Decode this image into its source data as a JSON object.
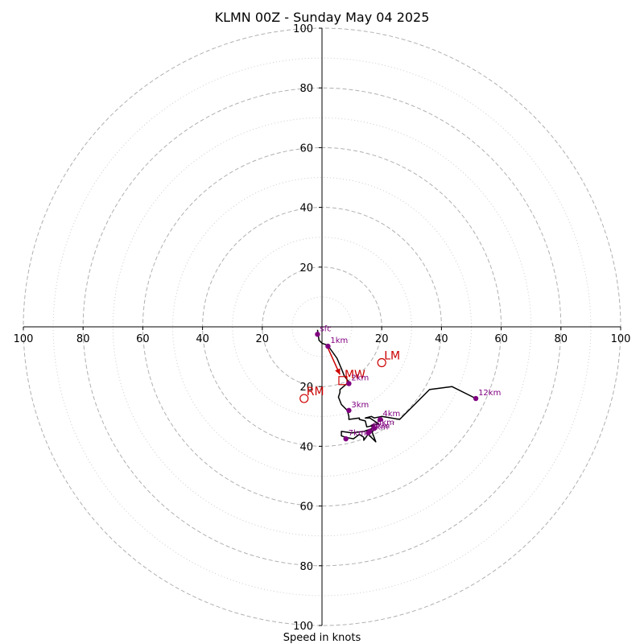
{
  "chart_data": {
    "type": "hodograph",
    "title": "KLMN 00Z - Sunday May 04 2025",
    "xlabel": "Speed in knots",
    "range": 100,
    "major_rings": [
      20,
      40,
      60,
      80,
      100
    ],
    "minor_rings": [
      10,
      30,
      50,
      70,
      90
    ],
    "ticks": {
      "x_left": [
        "100",
        "80",
        "60",
        "40",
        "20"
      ],
      "x_right": [
        "20",
        "40",
        "60",
        "80",
        "100"
      ],
      "y_up": [
        "20",
        "40",
        "60",
        "80",
        "100"
      ],
      "y_down": [
        "20",
        "40",
        "60",
        "80",
        "100"
      ]
    },
    "trace": [
      [
        -1.5,
        -1
      ],
      [
        -1,
        -4.5
      ],
      [
        0,
        -5.5
      ],
      [
        1.5,
        -6
      ],
      [
        2.5,
        -7
      ],
      [
        5,
        -10.5
      ],
      [
        6.5,
        -14
      ],
      [
        7.5,
        -16.5
      ],
      [
        9,
        -18.5
      ],
      [
        6,
        -21
      ],
      [
        6,
        -22
      ],
      [
        6,
        -22
      ],
      [
        5.5,
        -23.5
      ],
      [
        6.5,
        -26
      ],
      [
        8.5,
        -28
      ],
      [
        9,
        -30
      ],
      [
        9,
        -31
      ],
      [
        12.5,
        -30.5
      ],
      [
        12.5,
        -31
      ],
      [
        14.5,
        -31.5
      ],
      [
        15,
        -33.5
      ],
      [
        17.5,
        -33
      ],
      [
        17,
        -35
      ],
      [
        15,
        -35.5
      ],
      [
        18,
        -38.5
      ],
      [
        16.5,
        -34.5
      ],
      [
        14,
        -38
      ],
      [
        14,
        -37
      ],
      [
        12.5,
        -36
      ],
      [
        10.5,
        -37.5
      ],
      [
        8,
        -37
      ],
      [
        6.5,
        -36.5
      ],
      [
        6.5,
        -35
      ],
      [
        10,
        -35.5
      ],
      [
        14,
        -35
      ],
      [
        17,
        -34
      ],
      [
        16.5,
        -33
      ],
      [
        19,
        -32.5
      ],
      [
        16,
        -30.5
      ],
      [
        14.5,
        -30.5
      ],
      [
        16.5,
        -30
      ],
      [
        17.5,
        -30.5
      ],
      [
        20,
        -30
      ],
      [
        26,
        -31
      ],
      [
        36,
        -21
      ],
      [
        43.5,
        -20
      ],
      [
        51.5,
        -24
      ]
    ],
    "height_markers": [
      {
        "label": "sfc",
        "x": -1.5,
        "y": -2.5
      },
      {
        "label": "1km",
        "x": 2,
        "y": -6.5
      },
      {
        "label": "2km",
        "x": 9,
        "y": -19
      },
      {
        "label": "3km",
        "x": 9,
        "y": -28
      },
      {
        "label": "4km",
        "x": 19.5,
        "y": -31
      },
      {
        "label": "5km",
        "x": 17.5,
        "y": -34
      },
      {
        "label": "6km",
        "x": 16,
        "y": -35
      },
      {
        "label": "7km",
        "x": 8,
        "y": -37.5
      },
      {
        "label": "8km",
        "x": 15.5,
        "y": -35.5
      },
      {
        "label": "12km",
        "x": 51.5,
        "y": -24
      }
    ],
    "storm_motion": {
      "shear_vector": {
        "from": [
          1.5,
          -6
        ],
        "to": [
          6,
          -16
        ]
      },
      "MW": {
        "label": "MW",
        "x": 7,
        "y": -18
      },
      "LM": {
        "label": "LM",
        "x": 20,
        "y": -12
      },
      "RM": {
        "label": "RM",
        "x": -6,
        "y": -24
      }
    },
    "colors": {
      "trace": "#000000",
      "markers": "#800080",
      "storm_motion": "#cc0000",
      "rings": "#b0b0b0",
      "axes": "#000000"
    }
  }
}
